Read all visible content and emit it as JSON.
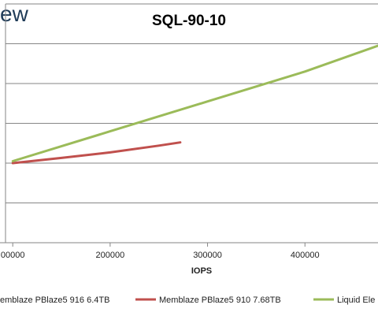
{
  "logo": {
    "text": "ew"
  },
  "chart_data": {
    "type": "line",
    "title": "SQL-90-10",
    "xlabel": "IOPS",
    "ylabel": "",
    "xlim": [
      95000,
      475000
    ],
    "x_ticks": [
      "00000",
      "200000",
      "300000",
      "400000"
    ],
    "x_tick_values": [
      100000,
      200000,
      300000,
      400000
    ],
    "ylim": [
      0,
      6
    ],
    "y_gridlines": [
      1,
      2,
      3,
      4,
      5,
      6
    ],
    "grid": true,
    "legend_position": "bottom",
    "series": [
      {
        "name": "emblaze PBlaze5 916 6.4TB",
        "color": "#4f81bd",
        "x": [],
        "y": []
      },
      {
        "name": "Memblaze PBlaze5 910 7.68TB",
        "color": "#c0504d",
        "x": [
          100000,
          150000,
          200000,
          250000,
          272000
        ],
        "y": [
          2.0,
          2.13,
          2.27,
          2.44,
          2.52
        ]
      },
      {
        "name": "Liquid Ele",
        "color": "#9bbb59",
        "x": [
          100000,
          200000,
          300000,
          400000,
          475000
        ],
        "y": [
          2.05,
          2.8,
          3.55,
          4.3,
          4.95
        ]
      }
    ]
  }
}
